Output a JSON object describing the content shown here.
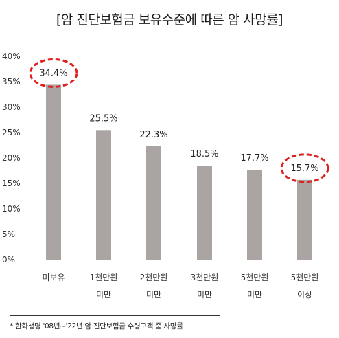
{
  "chart_data": {
    "type": "bar",
    "title": "[암 진단보험금 보유수준에 따른 암 사망률]",
    "categories": [
      [
        "미보유"
      ],
      [
        "1천만원",
        "미만"
      ],
      [
        "2천만원",
        "미만"
      ],
      [
        "3천만원",
        "미만"
      ],
      [
        "5천만원",
        "미만"
      ],
      [
        "5천만원",
        "이상"
      ]
    ],
    "values": [
      34.4,
      25.5,
      22.3,
      18.5,
      17.7,
      15.7
    ],
    "value_labels": [
      "34.4%",
      "25.5%",
      "22.3%",
      "18.5%",
      "17.7%",
      "15.7%"
    ],
    "y_ticks": [
      "0%",
      "5%",
      "10%",
      "15%",
      "20%",
      "25%",
      "30%",
      "35%",
      "40%"
    ],
    "ylim": [
      0,
      40
    ],
    "xlabel": "",
    "ylabel": "",
    "grid": false,
    "highlighted_categories": [
      0,
      5
    ],
    "bar_color": "#aaa5a3",
    "highlight_color": "#e02020",
    "footnote": "* 한화생명 '08년~'22년 암 진단보험금 수령고객 중 사망률"
  }
}
